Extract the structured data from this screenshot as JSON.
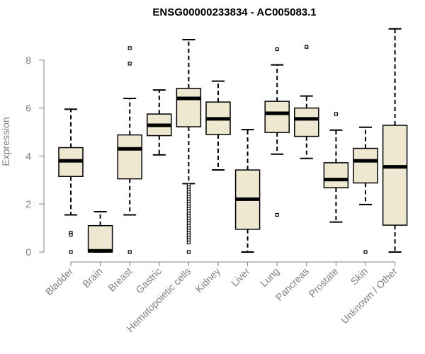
{
  "chart_data": {
    "type": "boxplot",
    "title": "ENSG00000233834 - AC005083.1",
    "xlabel": "",
    "ylabel": "Expression",
    "ylim": [
      0,
      9.2
    ],
    "yticks": [
      0,
      2,
      4,
      6,
      8
    ],
    "box_color": "#EEE8D0",
    "axis_color": "#808080",
    "categories": [
      "Bladder",
      "Brain",
      "Breast",
      "Gastric",
      "Hematopoietic cells",
      "Kidney",
      "Liver",
      "Lung",
      "Pancreas",
      "Prostate",
      "Skin",
      "Unknown / Other"
    ],
    "boxes": [
      {
        "min": 1.55,
        "q1": 3.15,
        "median": 3.8,
        "q3": 4.35,
        "max": 5.95,
        "outliers": [
          0.8,
          0.72,
          0.0
        ]
      },
      {
        "min": 0.0,
        "q1": 0.0,
        "median": 0.05,
        "q3": 1.1,
        "max": 1.68,
        "outliers": []
      },
      {
        "min": 1.55,
        "q1": 3.05,
        "median": 4.3,
        "q3": 4.88,
        "max": 6.4,
        "outliers": [
          8.5,
          7.85,
          0.0
        ]
      },
      {
        "min": 4.05,
        "q1": 4.85,
        "median": 5.28,
        "q3": 5.75,
        "max": 6.75,
        "outliers": []
      },
      {
        "min": 2.85,
        "q1": 5.22,
        "median": 6.4,
        "q3": 6.82,
        "max": 8.85,
        "outliers": [
          2.8,
          2.7,
          2.6,
          2.5,
          2.4,
          2.3,
          2.2,
          2.1,
          2.0,
          1.9,
          1.8,
          1.7,
          1.6,
          1.5,
          1.4,
          1.3,
          1.2,
          1.1,
          1.0,
          0.9,
          0.8,
          0.7,
          0.6,
          0.5,
          0.4,
          0.0
        ]
      },
      {
        "min": 3.42,
        "q1": 4.9,
        "median": 5.55,
        "q3": 6.25,
        "max": 7.12,
        "outliers": []
      },
      {
        "min": 0.0,
        "q1": 0.95,
        "median": 2.2,
        "q3": 3.42,
        "max": 5.1,
        "outliers": []
      },
      {
        "min": 4.08,
        "q1": 4.98,
        "median": 5.78,
        "q3": 6.28,
        "max": 7.8,
        "outliers": [
          8.45,
          1.55
        ]
      },
      {
        "min": 3.9,
        "q1": 4.82,
        "median": 5.55,
        "q3": 6.0,
        "max": 6.5,
        "outliers": [
          8.55
        ]
      },
      {
        "min": 1.25,
        "q1": 2.68,
        "median": 3.02,
        "q3": 3.72,
        "max": 5.08,
        "outliers": [
          5.75
        ]
      },
      {
        "min": 1.98,
        "q1": 2.88,
        "median": 3.8,
        "q3": 4.32,
        "max": 5.2,
        "outliers": [
          0.0
        ]
      },
      {
        "min": 0.0,
        "q1": 1.12,
        "median": 3.55,
        "q3": 5.28,
        "max": 9.3,
        "outliers": []
      }
    ]
  }
}
